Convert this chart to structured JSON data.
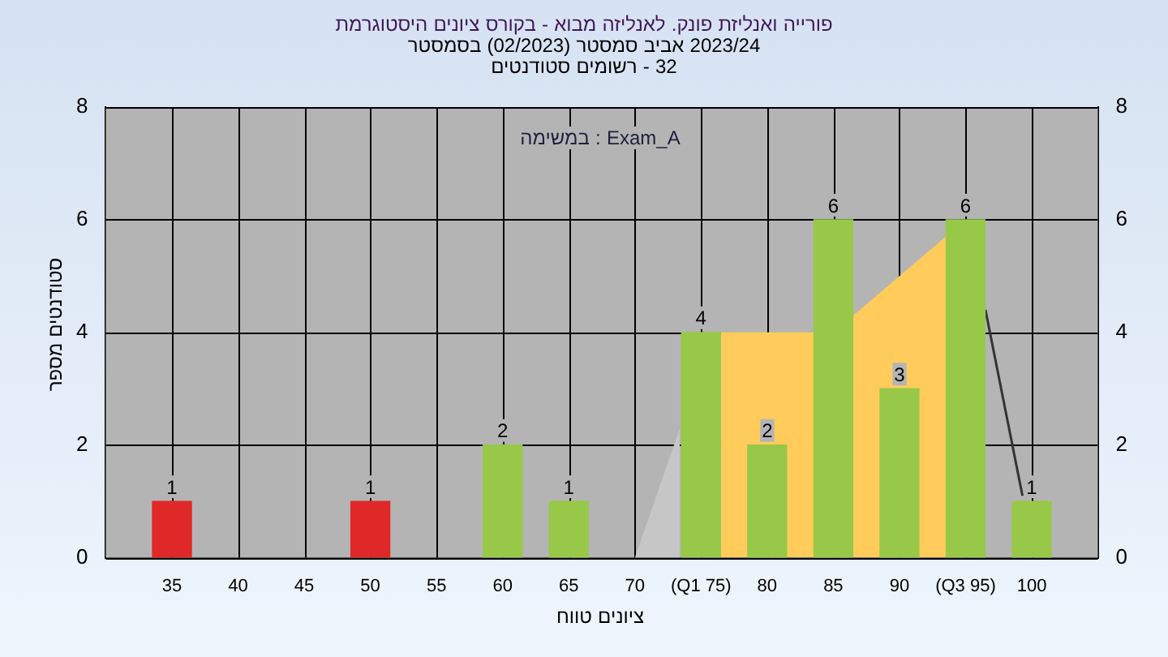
{
  "chart_data": {
    "type": "bar",
    "title": "היסטוגרמת ציונים בקורס - מבוא לאנליזה פונק. ואנליזת פורייה",
    "subtitle": "בסמסטר  (02/2023)  סמסטר אביב 2023/24\nסטודנטים רשומים - 32",
    "xlabel": "טווח ציונים",
    "ylabel": "מספר סטודנטים",
    "annotations": [
      "במשימה : Exam_A"
    ],
    "series": [
      {
        "x": [
          35,
          50,
          60,
          65,
          75,
          80,
          85,
          90,
          95,
          100
        ],
        "values": [
          1,
          1,
          2,
          1,
          4,
          2,
          6,
          3,
          6,
          1
        ],
        "value_labels": [
          "1",
          "1",
          "2",
          "1",
          "4",
          "2",
          "6",
          "3",
          "6",
          "1"
        ],
        "colors": [
          "#e02828",
          "#e02828",
          "#98c848",
          "#98c848",
          "#98c848",
          "#98c848",
          "#98c848",
          "#98c848",
          "#98c848",
          "#98c848"
        ]
      },
      {
        "type": "area",
        "x": [
          70,
          73.4
        ],
        "values": [
          0,
          2.3
        ],
        "color": "#c6c6c6"
      },
      {
        "type": "area",
        "x": [
          76.5,
          83.5,
          86.5,
          93.5
        ],
        "values": [
          4,
          4,
          4.3,
          5.7
        ],
        "color": "#ffcc5c"
      },
      {
        "type": "line",
        "x": [
          96.5,
          99.3
        ],
        "values": [
          4.4,
          1.1
        ],
        "color": "#333333"
      }
    ],
    "xlim": [
      30,
      105
    ],
    "xticks": [
      35,
      40,
      45,
      50,
      55,
      60,
      65,
      70,
      {
        "value": 75,
        "label": "(Q1 75)"
      },
      80,
      85,
      90,
      {
        "value": 95,
        "label": "(Q3 95)"
      },
      100
    ],
    "ylim": [
      0,
      8
    ],
    "yticks": [
      0,
      2,
      4,
      6,
      8
    ],
    "y2lim": [
      0,
      8
    ],
    "y2ticks": [
      0,
      2,
      4,
      6,
      8
    ],
    "grid": true
  }
}
